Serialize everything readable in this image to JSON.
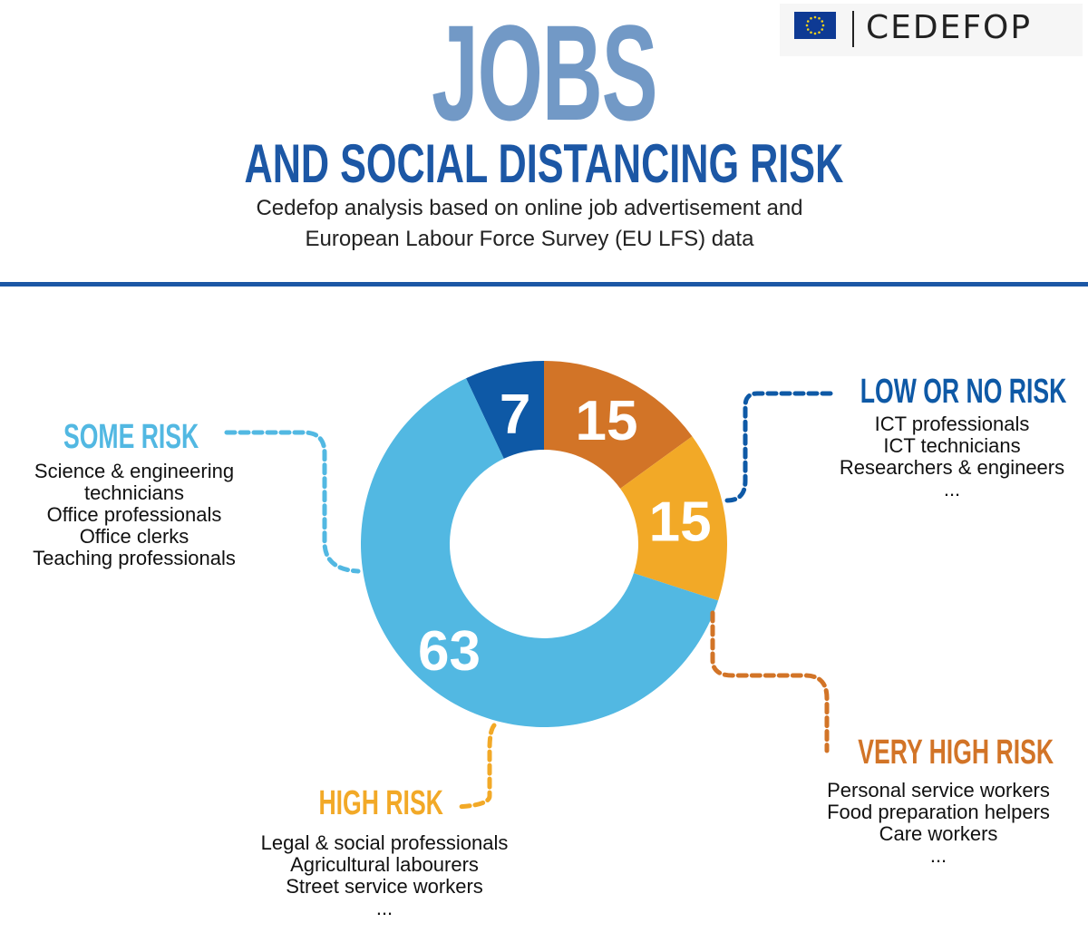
{
  "header": {
    "title": "JOBS",
    "subtitle": "AND SOCIAL DISTANCING RISK",
    "description_lines": [
      "Cedefop analysis based on online job advertisement and",
      "European Labour Force Survey (EU LFS) data"
    ]
  },
  "logo": {
    "text": "CEDEFOP"
  },
  "colors": {
    "title_light": "#7299C6",
    "title_dark": "#1C57A5",
    "divider": "#1C57A5",
    "eu_flag": "#0E3A94",
    "eu_stars": "#F4D31A"
  },
  "chart_data": {
    "type": "pie",
    "variant": "donut",
    "slices": [
      {
        "label": "LOW OR NO RISK",
        "value": 7,
        "color": "#0E59A6"
      },
      {
        "label": "VERY HIGH RISK",
        "value": 15,
        "color": "#D27427"
      },
      {
        "label": "HIGH RISK",
        "value": 15,
        "color": "#F2A927"
      },
      {
        "label": "SOME RISK",
        "value": 63,
        "color": "#52B8E2"
      }
    ]
  },
  "categories": {
    "low": {
      "title": "LOW OR NO RISK",
      "color": "#0E59A6",
      "items": [
        "ICT professionals",
        "ICT technicians",
        "Researchers & engineers",
        "..."
      ]
    },
    "some": {
      "title": "SOME RISK",
      "color": "#52B8E2",
      "items": [
        "Science & engineering",
        "technicians",
        "Office professionals",
        "Office clerks",
        "Teaching professionals"
      ]
    },
    "high": {
      "title": "HIGH RISK",
      "color": "#F2A927",
      "items": [
        "Legal & social professionals",
        "Agricultural labourers",
        "Street service workers",
        "..."
      ]
    },
    "very_high": {
      "title": "VERY HIGH RISK",
      "color": "#D27427",
      "items": [
        "Personal service workers",
        "Food preparation helpers",
        "Care workers",
        "..."
      ]
    }
  }
}
